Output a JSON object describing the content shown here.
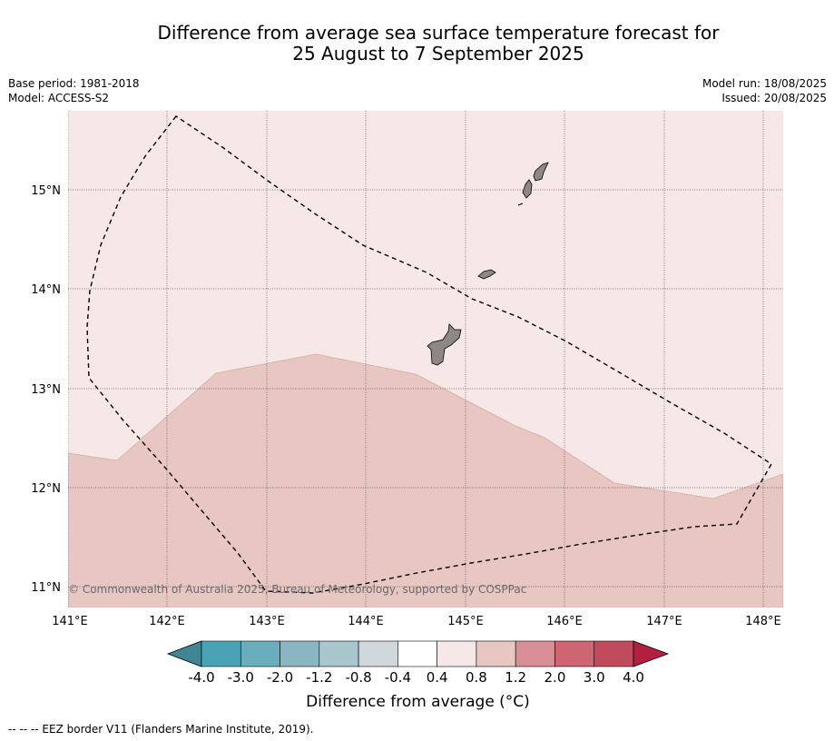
{
  "title_line1": "Difference from average sea surface temperature forecast for",
  "title_line2": "25 August to 7 September 2025",
  "base_period": "Base period: 1981-2018",
  "model": "Model: ACCESS-S2",
  "model_run": "Model run: 18/08/2025",
  "issued": "Issued: 20/08/2025",
  "copyright": "© Commonwealth of Australia 2025, Bureau of Meteorology, supported by COSPPac",
  "footnote": "-- -- -- EEZ border V11 (Flanders Marine Institute, 2019).",
  "lon_ticks": [
    "141°E",
    "142°E",
    "143°E",
    "144°E",
    "145°E",
    "146°E",
    "147°E",
    "148°E"
  ],
  "lat_ticks": [
    "15°N",
    "14°N",
    "13°N",
    "12°N",
    "11°N"
  ],
  "colorbar": {
    "title": "Difference from average (°C)",
    "tick_labels": [
      "-4.0",
      "-3.0",
      "-2.0",
      "-1.2",
      "-0.8",
      "-0.4",
      "0.4",
      "0.8",
      "1.2",
      "2.0",
      "3.0",
      "4.0"
    ],
    "colors": [
      "#3f8795",
      "#4aa3b4",
      "#6aaebb",
      "#8ab6c1",
      "#a8c6cc",
      "#d0d8dc",
      "#ffffff",
      "#f5e8e6",
      "#e8c6c1",
      "#d98f97",
      "#cd6672",
      "#c04b5c",
      "#b22040"
    ]
  },
  "fill_colors": {
    "anomaly_0_4_to_0_8": "#f5e8e6",
    "anomaly_0_8_to_1_2": "#e8c6c1",
    "land": "#8f8785"
  }
}
